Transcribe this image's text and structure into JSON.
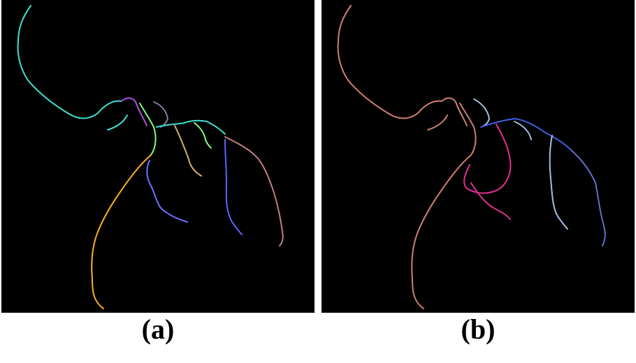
{
  "panels": [
    {
      "id": "a",
      "caption": "(a)",
      "background": "#000000",
      "vessel_colors": [
        "#40e0d0",
        "#b050e0",
        "#80ff80",
        "#ffb020",
        "#7070ff",
        "#c08080",
        "#e06040",
        "#8080a0",
        "#d4b060"
      ]
    },
    {
      "id": "b",
      "caption": "(b)",
      "background": "#000000",
      "vessel_colors": [
        "#d08070",
        "#4060e0",
        "#e03090",
        "#a0c0e0",
        "#6070d0"
      ]
    }
  ]
}
